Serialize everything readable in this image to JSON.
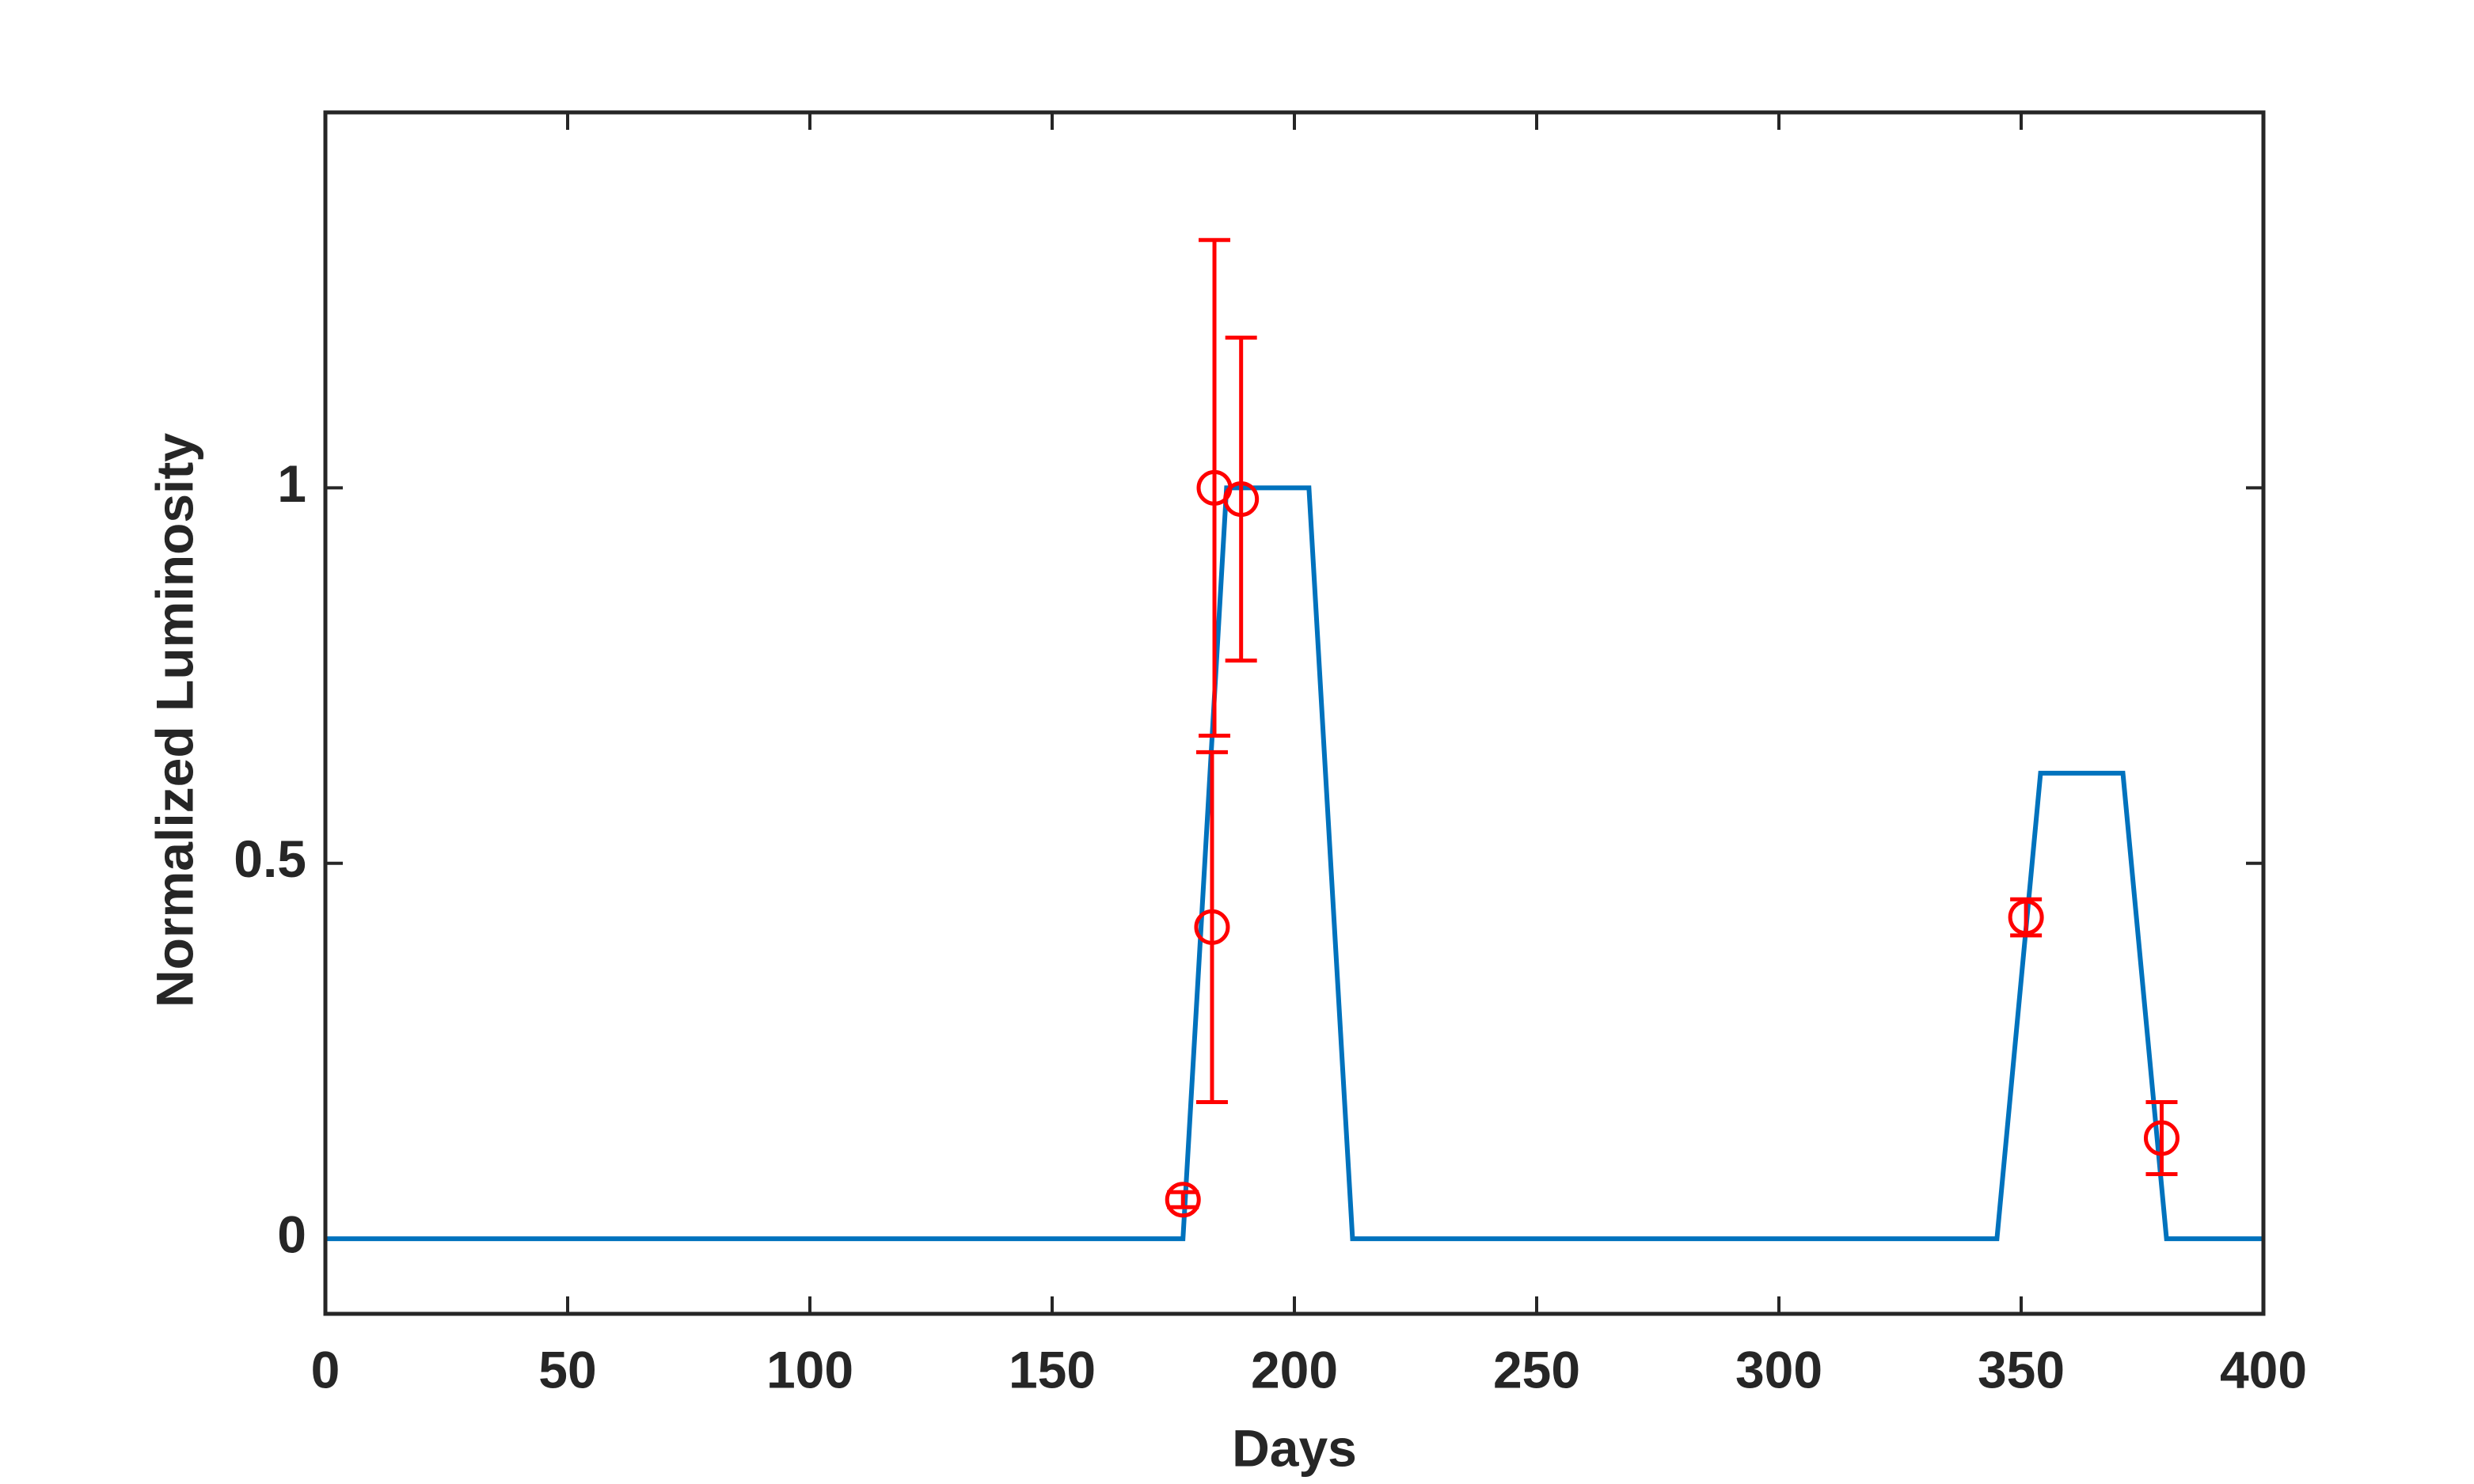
{
  "chart_data": {
    "type": "line",
    "xlabel": "Days",
    "ylabel": "Normalized Luminosity",
    "xlim": [
      0,
      400
    ],
    "xticks": [
      0,
      50,
      100,
      150,
      200,
      250,
      300,
      350,
      400
    ],
    "ylim": [
      -0.1,
      1.5
    ],
    "yticks": [
      0,
      0.5,
      1
    ],
    "grid": false,
    "series": [
      {
        "color": "#0072bd",
        "x": [
          0,
          177,
          186,
          203,
          212,
          345,
          354,
          371,
          380,
          400
        ],
        "values": [
          0,
          0,
          1,
          1,
          0,
          0,
          0.62,
          0.62,
          0,
          0
        ]
      },
      {
        "color": "#ff0000",
        "marker": "circle",
        "x": [
          177,
          183,
          183.5,
          189,
          351,
          379
        ],
        "values": [
          0.052,
          0.415,
          1.0,
          0.985,
          0.428,
          0.134
        ],
        "errors": [
          0.01,
          0.233,
          0.33,
          0.215,
          0.024,
          0.048
        ]
      }
    ]
  }
}
